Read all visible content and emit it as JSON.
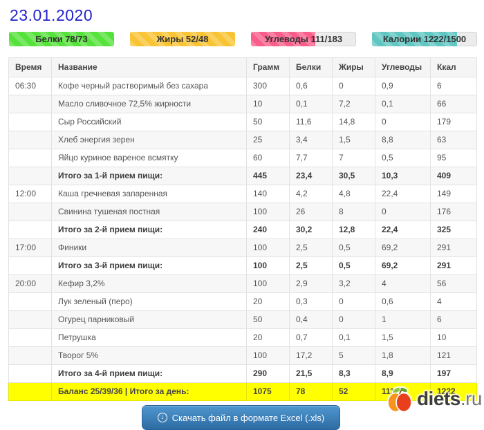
{
  "date": "23.01.2020",
  "badges": [
    {
      "name": "protein-badge",
      "label": "Белки 78/73",
      "color": "#55e23a",
      "fill_pct": 100
    },
    {
      "name": "fat-badge",
      "label": "Жиры 52/48",
      "color": "#f8c434",
      "fill_pct": 100
    },
    {
      "name": "carbs-badge",
      "label": "Углеводы 111/183",
      "color": "#f95e8b",
      "fill_pct": 61
    },
    {
      "name": "calories-badge",
      "label": "Калории 1222/1500",
      "color": "#5fc6c2",
      "fill_pct": 81
    }
  ],
  "table": {
    "headers": [
      "Время",
      "Название",
      "Грамм",
      "Белки",
      "Жиры",
      "Углеводы",
      "Ккал"
    ],
    "rows": [
      {
        "type": "food",
        "time": "06:30",
        "name": "Кофе черный растворимый без сахара",
        "gram": "300",
        "protein": "0,6",
        "fat": "0",
        "carbs": "0,9",
        "kcal": "6"
      },
      {
        "type": "food",
        "time": "",
        "name": "Масло сливочное 72,5% жирности",
        "gram": "10",
        "protein": "0,1",
        "fat": "7,2",
        "carbs": "0,1",
        "kcal": "66"
      },
      {
        "type": "food",
        "time": "",
        "name": "Сыр Российский",
        "gram": "50",
        "protein": "11,6",
        "fat": "14,8",
        "carbs": "0",
        "kcal": "179"
      },
      {
        "type": "food",
        "time": "",
        "name": "Хлеб энергия зерен",
        "gram": "25",
        "protein": "3,4",
        "fat": "1,5",
        "carbs": "8,8",
        "kcal": "63"
      },
      {
        "type": "food",
        "time": "",
        "name": "Яйцо куриное вареное всмятку",
        "gram": "60",
        "protein": "7,7",
        "fat": "7",
        "carbs": "0,5",
        "kcal": "95"
      },
      {
        "type": "subtotal",
        "time": "",
        "name": "Итого за 1-й прием пищи:",
        "gram": "445",
        "protein": "23,4",
        "fat": "30,5",
        "carbs": "10,3",
        "kcal": "409"
      },
      {
        "type": "food",
        "time": "12:00",
        "name": "Каша гречневая запаренная",
        "gram": "140",
        "protein": "4,2",
        "fat": "4,8",
        "carbs": "22,4",
        "kcal": "149"
      },
      {
        "type": "food",
        "time": "",
        "name": "Свинина тушеная постная",
        "gram": "100",
        "protein": "26",
        "fat": "8",
        "carbs": "0",
        "kcal": "176"
      },
      {
        "type": "subtotal",
        "time": "",
        "name": "Итого за 2-й прием пищи:",
        "gram": "240",
        "protein": "30,2",
        "fat": "12,8",
        "carbs": "22,4",
        "kcal": "325"
      },
      {
        "type": "food",
        "time": "17:00",
        "name": "Финики",
        "gram": "100",
        "protein": "2,5",
        "fat": "0,5",
        "carbs": "69,2",
        "kcal": "291"
      },
      {
        "type": "subtotal",
        "time": "",
        "name": "Итого за 3-й прием пищи:",
        "gram": "100",
        "protein": "2,5",
        "fat": "0,5",
        "carbs": "69,2",
        "kcal": "291"
      },
      {
        "type": "food",
        "time": "20:00",
        "name": "Кефир 3,2%",
        "gram": "100",
        "protein": "2,9",
        "fat": "3,2",
        "carbs": "4",
        "kcal": "56"
      },
      {
        "type": "food",
        "time": "",
        "name": "Лук зеленый (перо)",
        "gram": "20",
        "protein": "0,3",
        "fat": "0",
        "carbs": "0,6",
        "kcal": "4"
      },
      {
        "type": "food",
        "time": "",
        "name": "Огурец парниковый",
        "gram": "50",
        "protein": "0,4",
        "fat": "0",
        "carbs": "1",
        "kcal": "6"
      },
      {
        "type": "food",
        "time": "",
        "name": "Петрушка",
        "gram": "20",
        "protein": "0,7",
        "fat": "0,1",
        "carbs": "1,5",
        "kcal": "10"
      },
      {
        "type": "food",
        "time": "",
        "name": "Творог 5%",
        "gram": "100",
        "protein": "17,2",
        "fat": "5",
        "carbs": "1,8",
        "kcal": "121"
      },
      {
        "type": "subtotal",
        "time": "",
        "name": "Итого за 4-й прием пищи:",
        "gram": "290",
        "protein": "21,5",
        "fat": "8,3",
        "carbs": "8,9",
        "kcal": "197"
      },
      {
        "type": "total",
        "time": "",
        "name": "Баланс 25/39/36 | Итого за день:",
        "gram": "1075",
        "protein": "78",
        "fat": "52",
        "carbs": "111",
        "kcal": "1222"
      }
    ]
  },
  "download_button": {
    "label": "Скачать файл в формате Excel (.xls)",
    "icon_glyph": "↓"
  },
  "logo": {
    "text": "diets",
    "suffix": ".ru"
  }
}
